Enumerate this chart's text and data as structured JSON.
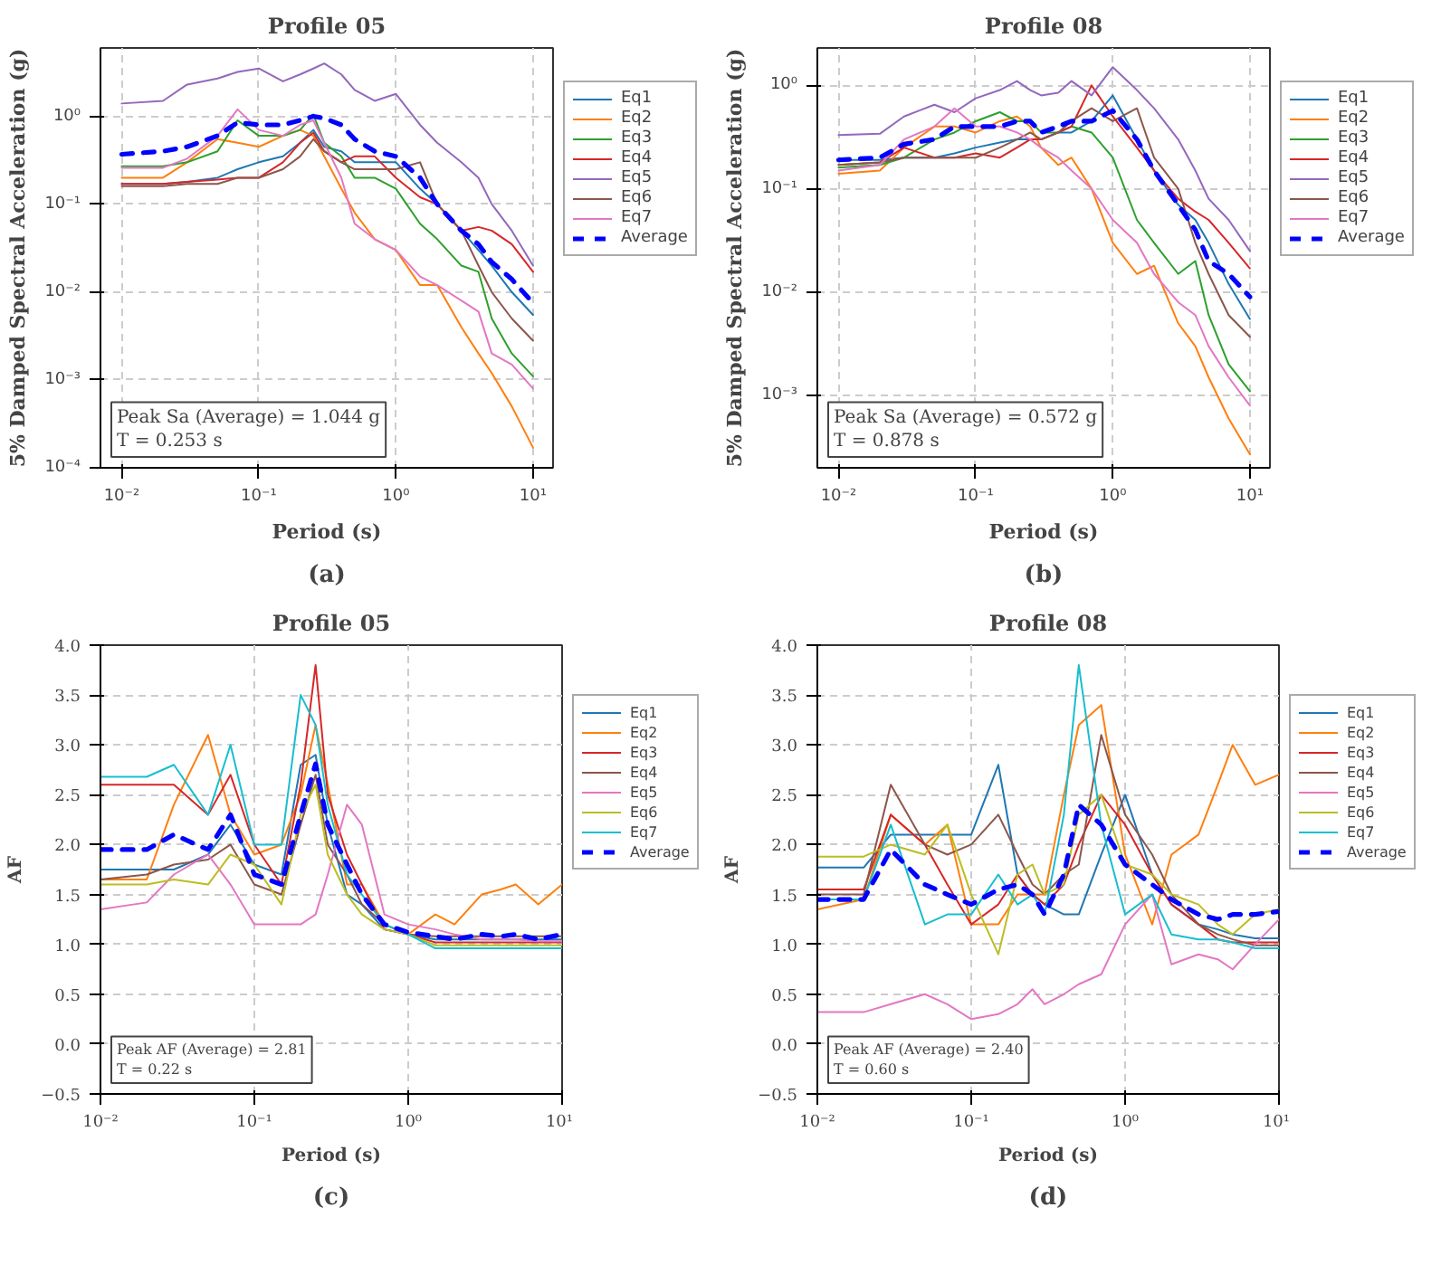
{
  "chart_data": [
    {
      "type": "line",
      "title": "Profile 05",
      "xlabel": "Period (s)",
      "ylabel": "5% Damped Spectral Acceleration (g)",
      "log": "xy",
      "grid": true,
      "legend": "right",
      "line_style": "solid",
      "marker": "none",
      "x": [
        0.01,
        0.02,
        0.03,
        0.05,
        0.07,
        0.1,
        0.15,
        0.2,
        0.25,
        0.3,
        0.4,
        0.5,
        0.7,
        1,
        1.5,
        2,
        3,
        4,
        5,
        7,
        10
      ],
      "xlim": [
        0.007,
        14
      ],
      "ylim": [
        0.0001,
        6
      ],
      "xticks": [
        {
          "value": 0.01,
          "label": "10⁻²"
        },
        {
          "value": 0.1,
          "label": "10⁻¹"
        },
        {
          "value": 1,
          "label": "10⁰"
        },
        {
          "value": 10,
          "label": "10¹"
        }
      ],
      "yticks": [
        {
          "value": 0.0001,
          "label": "10⁻⁴"
        },
        {
          "value": 0.001,
          "label": "10⁻³"
        },
        {
          "value": 0.01,
          "label": "10⁻²"
        },
        {
          "value": 0.1,
          "label": "10⁻¹"
        },
        {
          "value": 1,
          "label": "10⁰"
        }
      ],
      "annotations": [
        "Peak Sa (Average) = 1.044 g\nT = 0.253 s",
        "(a)"
      ],
      "series": [
        {
          "name": "Eq1",
          "color": "#1f77b4",
          "values": [
            0.17,
            0.17,
            0.18,
            0.2,
            0.25,
            0.3,
            0.35,
            0.5,
            0.7,
            0.45,
            0.4,
            0.3,
            0.3,
            0.3,
            0.15,
            0.1,
            0.05,
            0.03,
            0.02,
            0.01,
            0.0055
          ]
        },
        {
          "name": "Eq2",
          "color": "#ff7f0e",
          "values": [
            0.2,
            0.2,
            0.3,
            0.55,
            0.5,
            0.45,
            0.6,
            0.7,
            0.6,
            0.35,
            0.15,
            0.08,
            0.04,
            0.03,
            0.012,
            0.012,
            0.004,
            0.002,
            0.0012,
            0.0005,
            0.00017
          ]
        },
        {
          "name": "Eq3",
          "color": "#2ca02c",
          "values": [
            0.27,
            0.27,
            0.3,
            0.4,
            0.9,
            0.6,
            0.6,
            0.7,
            1.05,
            0.5,
            0.35,
            0.2,
            0.2,
            0.15,
            0.06,
            0.04,
            0.02,
            0.017,
            0.005,
            0.002,
            0.0011
          ]
        },
        {
          "name": "Eq4",
          "color": "#d62728",
          "values": [
            0.17,
            0.17,
            0.18,
            0.19,
            0.2,
            0.2,
            0.3,
            0.5,
            0.65,
            0.4,
            0.3,
            0.35,
            0.35,
            0.2,
            0.12,
            0.1,
            0.05,
            0.055,
            0.05,
            0.035,
            0.017
          ]
        },
        {
          "name": "Eq5",
          "color": "#9467bd",
          "values": [
            1.4,
            1.5,
            2.3,
            2.7,
            3.2,
            3.5,
            2.5,
            3.0,
            3.5,
            4.0,
            3.0,
            2.0,
            1.5,
            1.8,
            0.8,
            0.5,
            0.3,
            0.2,
            0.1,
            0.05,
            0.02
          ]
        },
        {
          "name": "Eq6",
          "color": "#8c564b",
          "values": [
            0.16,
            0.16,
            0.17,
            0.17,
            0.2,
            0.2,
            0.25,
            0.35,
            0.55,
            0.4,
            0.3,
            0.25,
            0.25,
            0.25,
            0.3,
            0.1,
            0.05,
            0.02,
            0.01,
            0.005,
            0.0028
          ]
        },
        {
          "name": "Eq7",
          "color": "#e377c2",
          "values": [
            0.26,
            0.26,
            0.33,
            0.6,
            1.2,
            0.7,
            0.6,
            0.8,
            0.9,
            0.5,
            0.2,
            0.06,
            0.04,
            0.03,
            0.015,
            0.012,
            0.008,
            0.006,
            0.002,
            0.0015,
            0.0008
          ]
        },
        {
          "name": "Average",
          "color": "#0000ff",
          "line_style": "dashed",
          "values": [
            0.37,
            0.4,
            0.45,
            0.6,
            0.85,
            0.8,
            0.8,
            0.9,
            1.0,
            0.95,
            0.8,
            0.55,
            0.4,
            0.35,
            0.2,
            0.1,
            0.05,
            0.035,
            0.022,
            0.014,
            0.0075
          ]
        }
      ]
    },
    {
      "type": "line",
      "title": "Profile 08",
      "xlabel": "Period (s)",
      "ylabel": "5% Damped Spectral Acceleration (g)",
      "log": "xy",
      "grid": true,
      "legend": "right",
      "line_style": "solid",
      "marker": "none",
      "x": [
        0.01,
        0.02,
        0.03,
        0.05,
        0.07,
        0.1,
        0.15,
        0.2,
        0.25,
        0.3,
        0.4,
        0.5,
        0.7,
        1,
        1.5,
        2,
        3,
        4,
        5,
        7,
        10
      ],
      "xlim": [
        0.007,
        14
      ],
      "ylim": [
        0.0002,
        2.3
      ],
      "xticks": [
        {
          "value": 0.01,
          "label": "10⁻²"
        },
        {
          "value": 0.1,
          "label": "10⁻¹"
        },
        {
          "value": 1,
          "label": "10⁰"
        },
        {
          "value": 10,
          "label": "10¹"
        }
      ],
      "yticks": [
        {
          "value": 0.001,
          "label": "10⁻³"
        },
        {
          "value": 0.01,
          "label": "10⁻²"
        },
        {
          "value": 0.1,
          "label": "10⁻¹"
        },
        {
          "value": 1,
          "label": "10⁰"
        }
      ],
      "annotations": [
        "Peak Sa (Average) = 0.572 g\nT = 0.878 s",
        "(b)"
      ],
      "series": [
        {
          "name": "Eq1",
          "color": "#1f77b4",
          "values": [
            0.19,
            0.19,
            0.2,
            0.2,
            0.22,
            0.25,
            0.28,
            0.3,
            0.3,
            0.3,
            0.35,
            0.35,
            0.45,
            0.8,
            0.3,
            0.15,
            0.07,
            0.05,
            0.03,
            0.012,
            0.0055
          ]
        },
        {
          "name": "Eq2",
          "color": "#ff7f0e",
          "values": [
            0.14,
            0.15,
            0.25,
            0.4,
            0.4,
            0.35,
            0.45,
            0.5,
            0.4,
            0.25,
            0.17,
            0.2,
            0.1,
            0.03,
            0.015,
            0.018,
            0.005,
            0.003,
            0.0015,
            0.0006,
            0.00027
          ]
        },
        {
          "name": "Eq3",
          "color": "#2ca02c",
          "values": [
            0.16,
            0.17,
            0.2,
            0.3,
            0.35,
            0.45,
            0.55,
            0.45,
            0.45,
            0.35,
            0.35,
            0.4,
            0.35,
            0.2,
            0.05,
            0.03,
            0.015,
            0.02,
            0.006,
            0.002,
            0.0011
          ]
        },
        {
          "name": "Eq4",
          "color": "#d62728",
          "values": [
            0.17,
            0.18,
            0.25,
            0.2,
            0.2,
            0.22,
            0.2,
            0.25,
            0.3,
            0.3,
            0.35,
            0.4,
            1.0,
            0.5,
            0.25,
            0.15,
            0.08,
            0.06,
            0.05,
            0.03,
            0.017
          ]
        },
        {
          "name": "Eq5",
          "color": "#9467bd",
          "values": [
            0.33,
            0.34,
            0.5,
            0.65,
            0.55,
            0.75,
            0.9,
            1.1,
            0.9,
            0.8,
            0.85,
            1.1,
            0.8,
            1.5,
            0.9,
            0.6,
            0.3,
            0.15,
            0.08,
            0.05,
            0.025
          ]
        },
        {
          "name": "Eq6",
          "color": "#8c564b",
          "values": [
            0.17,
            0.18,
            0.2,
            0.2,
            0.2,
            0.2,
            0.25,
            0.3,
            0.35,
            0.3,
            0.35,
            0.45,
            0.6,
            0.45,
            0.6,
            0.2,
            0.1,
            0.03,
            0.015,
            0.006,
            0.0037
          ]
        },
        {
          "name": "Eq7",
          "color": "#e377c2",
          "values": [
            0.15,
            0.17,
            0.3,
            0.4,
            0.6,
            0.4,
            0.4,
            0.35,
            0.3,
            0.25,
            0.2,
            0.15,
            0.1,
            0.05,
            0.03,
            0.015,
            0.008,
            0.006,
            0.003,
            0.0015,
            0.0008
          ]
        },
        {
          "name": "Average",
          "color": "#0000ff",
          "line_style": "dashed",
          "values": [
            0.19,
            0.2,
            0.27,
            0.3,
            0.4,
            0.4,
            0.4,
            0.45,
            0.45,
            0.35,
            0.4,
            0.45,
            0.45,
            0.57,
            0.3,
            0.15,
            0.07,
            0.04,
            0.02,
            0.015,
            0.009
          ]
        }
      ]
    },
    {
      "type": "line",
      "title": "Profile 05",
      "xlabel": "Period (s)",
      "ylabel": "AF",
      "log": "x",
      "grid": true,
      "legend": "right",
      "line_style": "solid",
      "marker": "none",
      "x": [
        0.01,
        0.02,
        0.03,
        0.05,
        0.07,
        0.1,
        0.15,
        0.2,
        0.25,
        0.3,
        0.4,
        0.5,
        0.7,
        1,
        1.5,
        2,
        3,
        4,
        5,
        7,
        10
      ],
      "xlim": [
        0.01,
        10
      ],
      "ylim": [
        -0.5,
        4.0
      ],
      "xticks": [
        {
          "value": 0.01,
          "label": "10⁻²"
        },
        {
          "value": 0.1,
          "label": "10⁻¹"
        },
        {
          "value": 1,
          "label": "10⁰"
        },
        {
          "value": 10,
          "label": "10¹"
        }
      ],
      "yticks": [
        {
          "value": -0.5,
          "label": "−0.5"
        },
        {
          "value": 0,
          "label": "0.0"
        },
        {
          "value": 0.5,
          "label": "0.5"
        },
        {
          "value": 1,
          "label": "1.0"
        },
        {
          "value": 1.5,
          "label": "1.5"
        },
        {
          "value": 2,
          "label": "2.0"
        },
        {
          "value": 2.5,
          "label": "2.5"
        },
        {
          "value": 3,
          "label": "3.0"
        },
        {
          "value": 3.5,
          "label": "3.5"
        },
        {
          "value": 4,
          "label": "4.0"
        }
      ],
      "annotations": [
        "Peak AF (Average) = 2.81\nT = 0.22 s",
        "(c)"
      ],
      "series": [
        {
          "name": "Eq1",
          "color": "#1f77b4",
          "values": [
            1.75,
            1.75,
            1.75,
            1.9,
            2.2,
            1.8,
            1.7,
            2.8,
            2.9,
            2.2,
            1.5,
            1.4,
            1.15,
            1.1,
            1.05,
            1.05,
            1.05,
            1.05,
            1.05,
            1.05,
            1.05
          ]
        },
        {
          "name": "Eq2",
          "color": "#ff7f0e",
          "values": [
            1.65,
            1.65,
            2.4,
            3.1,
            2.3,
            1.9,
            2.0,
            2.5,
            3.2,
            2.6,
            1.6,
            1.6,
            1.2,
            1.1,
            1.3,
            1.2,
            1.5,
            1.55,
            1.6,
            1.4,
            1.6
          ]
        },
        {
          "name": "Eq3",
          "color": "#d62728",
          "values": [
            2.6,
            2.6,
            2.6,
            2.3,
            2.7,
            2.0,
            1.6,
            2.6,
            3.8,
            2.5,
            1.9,
            1.6,
            1.15,
            1.1,
            1.02,
            1.02,
            1.02,
            1.02,
            1.02,
            1.02,
            1.02
          ]
        },
        {
          "name": "Eq4",
          "color": "#8c564b",
          "values": [
            1.65,
            1.7,
            1.8,
            1.85,
            2.0,
            1.6,
            1.5,
            2.2,
            2.7,
            2.0,
            1.7,
            1.4,
            1.2,
            1.1,
            1.08,
            1.08,
            1.08,
            1.08,
            1.08,
            1.08,
            1.08
          ]
        },
        {
          "name": "Eq5",
          "color": "#e377c2",
          "values": [
            1.35,
            1.42,
            1.7,
            1.9,
            1.6,
            1.2,
            1.2,
            1.2,
            1.3,
            1.7,
            2.4,
            2.2,
            1.3,
            1.2,
            1.15,
            1.1,
            1.05,
            1.05,
            1.05,
            1.03,
            1.03
          ]
        },
        {
          "name": "Eq6",
          "color": "#bcbd22",
          "values": [
            1.6,
            1.6,
            1.65,
            1.6,
            1.9,
            1.8,
            1.4,
            2.3,
            2.6,
            1.9,
            1.5,
            1.3,
            1.15,
            1.1,
            0.99,
            0.99,
            0.99,
            0.99,
            0.99,
            0.99,
            0.99
          ]
        },
        {
          "name": "Eq7",
          "color": "#17becf",
          "values": [
            2.68,
            2.68,
            2.8,
            2.3,
            3.0,
            2.0,
            2.0,
            3.5,
            3.2,
            2.4,
            1.7,
            1.5,
            1.2,
            1.1,
            0.96,
            0.96,
            0.96,
            0.96,
            0.96,
            0.96,
            0.96
          ]
        },
        {
          "name": "Average",
          "color": "#0000ff",
          "line_style": "dashed",
          "values": [
            1.95,
            1.95,
            2.1,
            1.95,
            2.3,
            1.7,
            1.6,
            2.3,
            2.81,
            2.2,
            1.8,
            1.5,
            1.2,
            1.12,
            1.08,
            1.05,
            1.1,
            1.08,
            1.1,
            1.05,
            1.1
          ]
        }
      ]
    },
    {
      "type": "line",
      "title": "Profile 08",
      "xlabel": "Period (s)",
      "ylabel": "AF",
      "log": "x",
      "grid": true,
      "legend": "right",
      "line_style": "solid",
      "marker": "none",
      "x": [
        0.01,
        0.02,
        0.03,
        0.05,
        0.07,
        0.1,
        0.15,
        0.2,
        0.25,
        0.3,
        0.4,
        0.5,
        0.7,
        1,
        1.5,
        2,
        3,
        4,
        5,
        7,
        10
      ],
      "xlim": [
        0.01,
        10
      ],
      "ylim": [
        -0.5,
        4.0
      ],
      "xticks": [
        {
          "value": 0.01,
          "label": "10⁻²"
        },
        {
          "value": 0.1,
          "label": "10⁻¹"
        },
        {
          "value": 1,
          "label": "10⁰"
        },
        {
          "value": 10,
          "label": "10¹"
        }
      ],
      "yticks": [
        {
          "value": -0.5,
          "label": "−0.5"
        },
        {
          "value": 0,
          "label": "0.0"
        },
        {
          "value": 0.5,
          "label": "0.5"
        },
        {
          "value": 1,
          "label": "1.0"
        },
        {
          "value": 1.5,
          "label": "1.5"
        },
        {
          "value": 2,
          "label": "2.0"
        },
        {
          "value": 2.5,
          "label": "2.5"
        },
        {
          "value": 3,
          "label": "3.0"
        },
        {
          "value": 3.5,
          "label": "3.5"
        },
        {
          "value": 4,
          "label": "4.0"
        }
      ],
      "annotations": [
        "Peak AF (Average) = 2.40\nT = 0.60 s",
        "(d)"
      ],
      "series": [
        {
          "name": "Eq1",
          "color": "#1f77b4",
          "values": [
            1.77,
            1.77,
            2.1,
            2.1,
            2.1,
            2.1,
            2.8,
            1.7,
            1.5,
            1.4,
            1.3,
            1.3,
            1.9,
            2.5,
            1.7,
            1.4,
            1.2,
            1.15,
            1.1,
            1.06,
            1.06
          ]
        },
        {
          "name": "Eq2",
          "color": "#ff7f0e",
          "values": [
            1.35,
            1.45,
            2.3,
            2.0,
            2.2,
            1.2,
            1.2,
            1.5,
            1.5,
            1.5,
            2.5,
            3.2,
            3.4,
            1.9,
            1.2,
            1.9,
            2.1,
            2.6,
            3.0,
            2.6,
            2.7
          ]
        },
        {
          "name": "Eq3",
          "color": "#d62728",
          "values": [
            1.55,
            1.55,
            2.3,
            2.0,
            1.6,
            1.2,
            1.4,
            1.7,
            1.5,
            1.4,
            1.6,
            2.0,
            2.5,
            2.2,
            1.7,
            1.4,
            1.2,
            1.05,
            1.02,
            1.02,
            1.02
          ]
        },
        {
          "name": "Eq4",
          "color": "#8c564b",
          "values": [
            1.5,
            1.5,
            2.6,
            2.0,
            1.9,
            2.0,
            2.3,
            1.9,
            1.6,
            1.5,
            1.7,
            1.8,
            3.1,
            2.3,
            1.9,
            1.5,
            1.2,
            1.1,
            1.05,
            0.99,
            0.99
          ]
        },
        {
          "name": "Eq5",
          "color": "#e377c2",
          "values": [
            0.32,
            0.32,
            0.4,
            0.5,
            0.4,
            0.25,
            0.3,
            0.4,
            0.55,
            0.4,
            0.5,
            0.6,
            0.7,
            1.2,
            1.5,
            0.8,
            0.9,
            0.85,
            0.75,
            1.0,
            1.25
          ]
        },
        {
          "name": "Eq6",
          "color": "#bcbd22",
          "values": [
            1.88,
            1.88,
            2.0,
            1.9,
            2.2,
            1.5,
            0.9,
            1.7,
            1.8,
            1.5,
            1.6,
            2.3,
            2.5,
            1.8,
            1.7,
            1.5,
            1.4,
            1.2,
            1.1,
            1.3,
            1.35
          ]
        },
        {
          "name": "Eq7",
          "color": "#17becf",
          "values": [
            1.45,
            1.45,
            2.2,
            1.2,
            1.3,
            1.3,
            1.7,
            1.4,
            1.5,
            1.3,
            2.3,
            3.8,
            2.2,
            1.3,
            1.5,
            1.1,
            1.05,
            1.05,
            1.02,
            0.96,
            0.96
          ]
        },
        {
          "name": "Average",
          "color": "#0000ff",
          "line_style": "dashed",
          "values": [
            1.45,
            1.45,
            1.95,
            1.6,
            1.5,
            1.4,
            1.55,
            1.6,
            1.5,
            1.3,
            1.7,
            2.4,
            2.2,
            1.8,
            1.6,
            1.45,
            1.3,
            1.25,
            1.3,
            1.3,
            1.33
          ]
        }
      ]
    }
  ]
}
